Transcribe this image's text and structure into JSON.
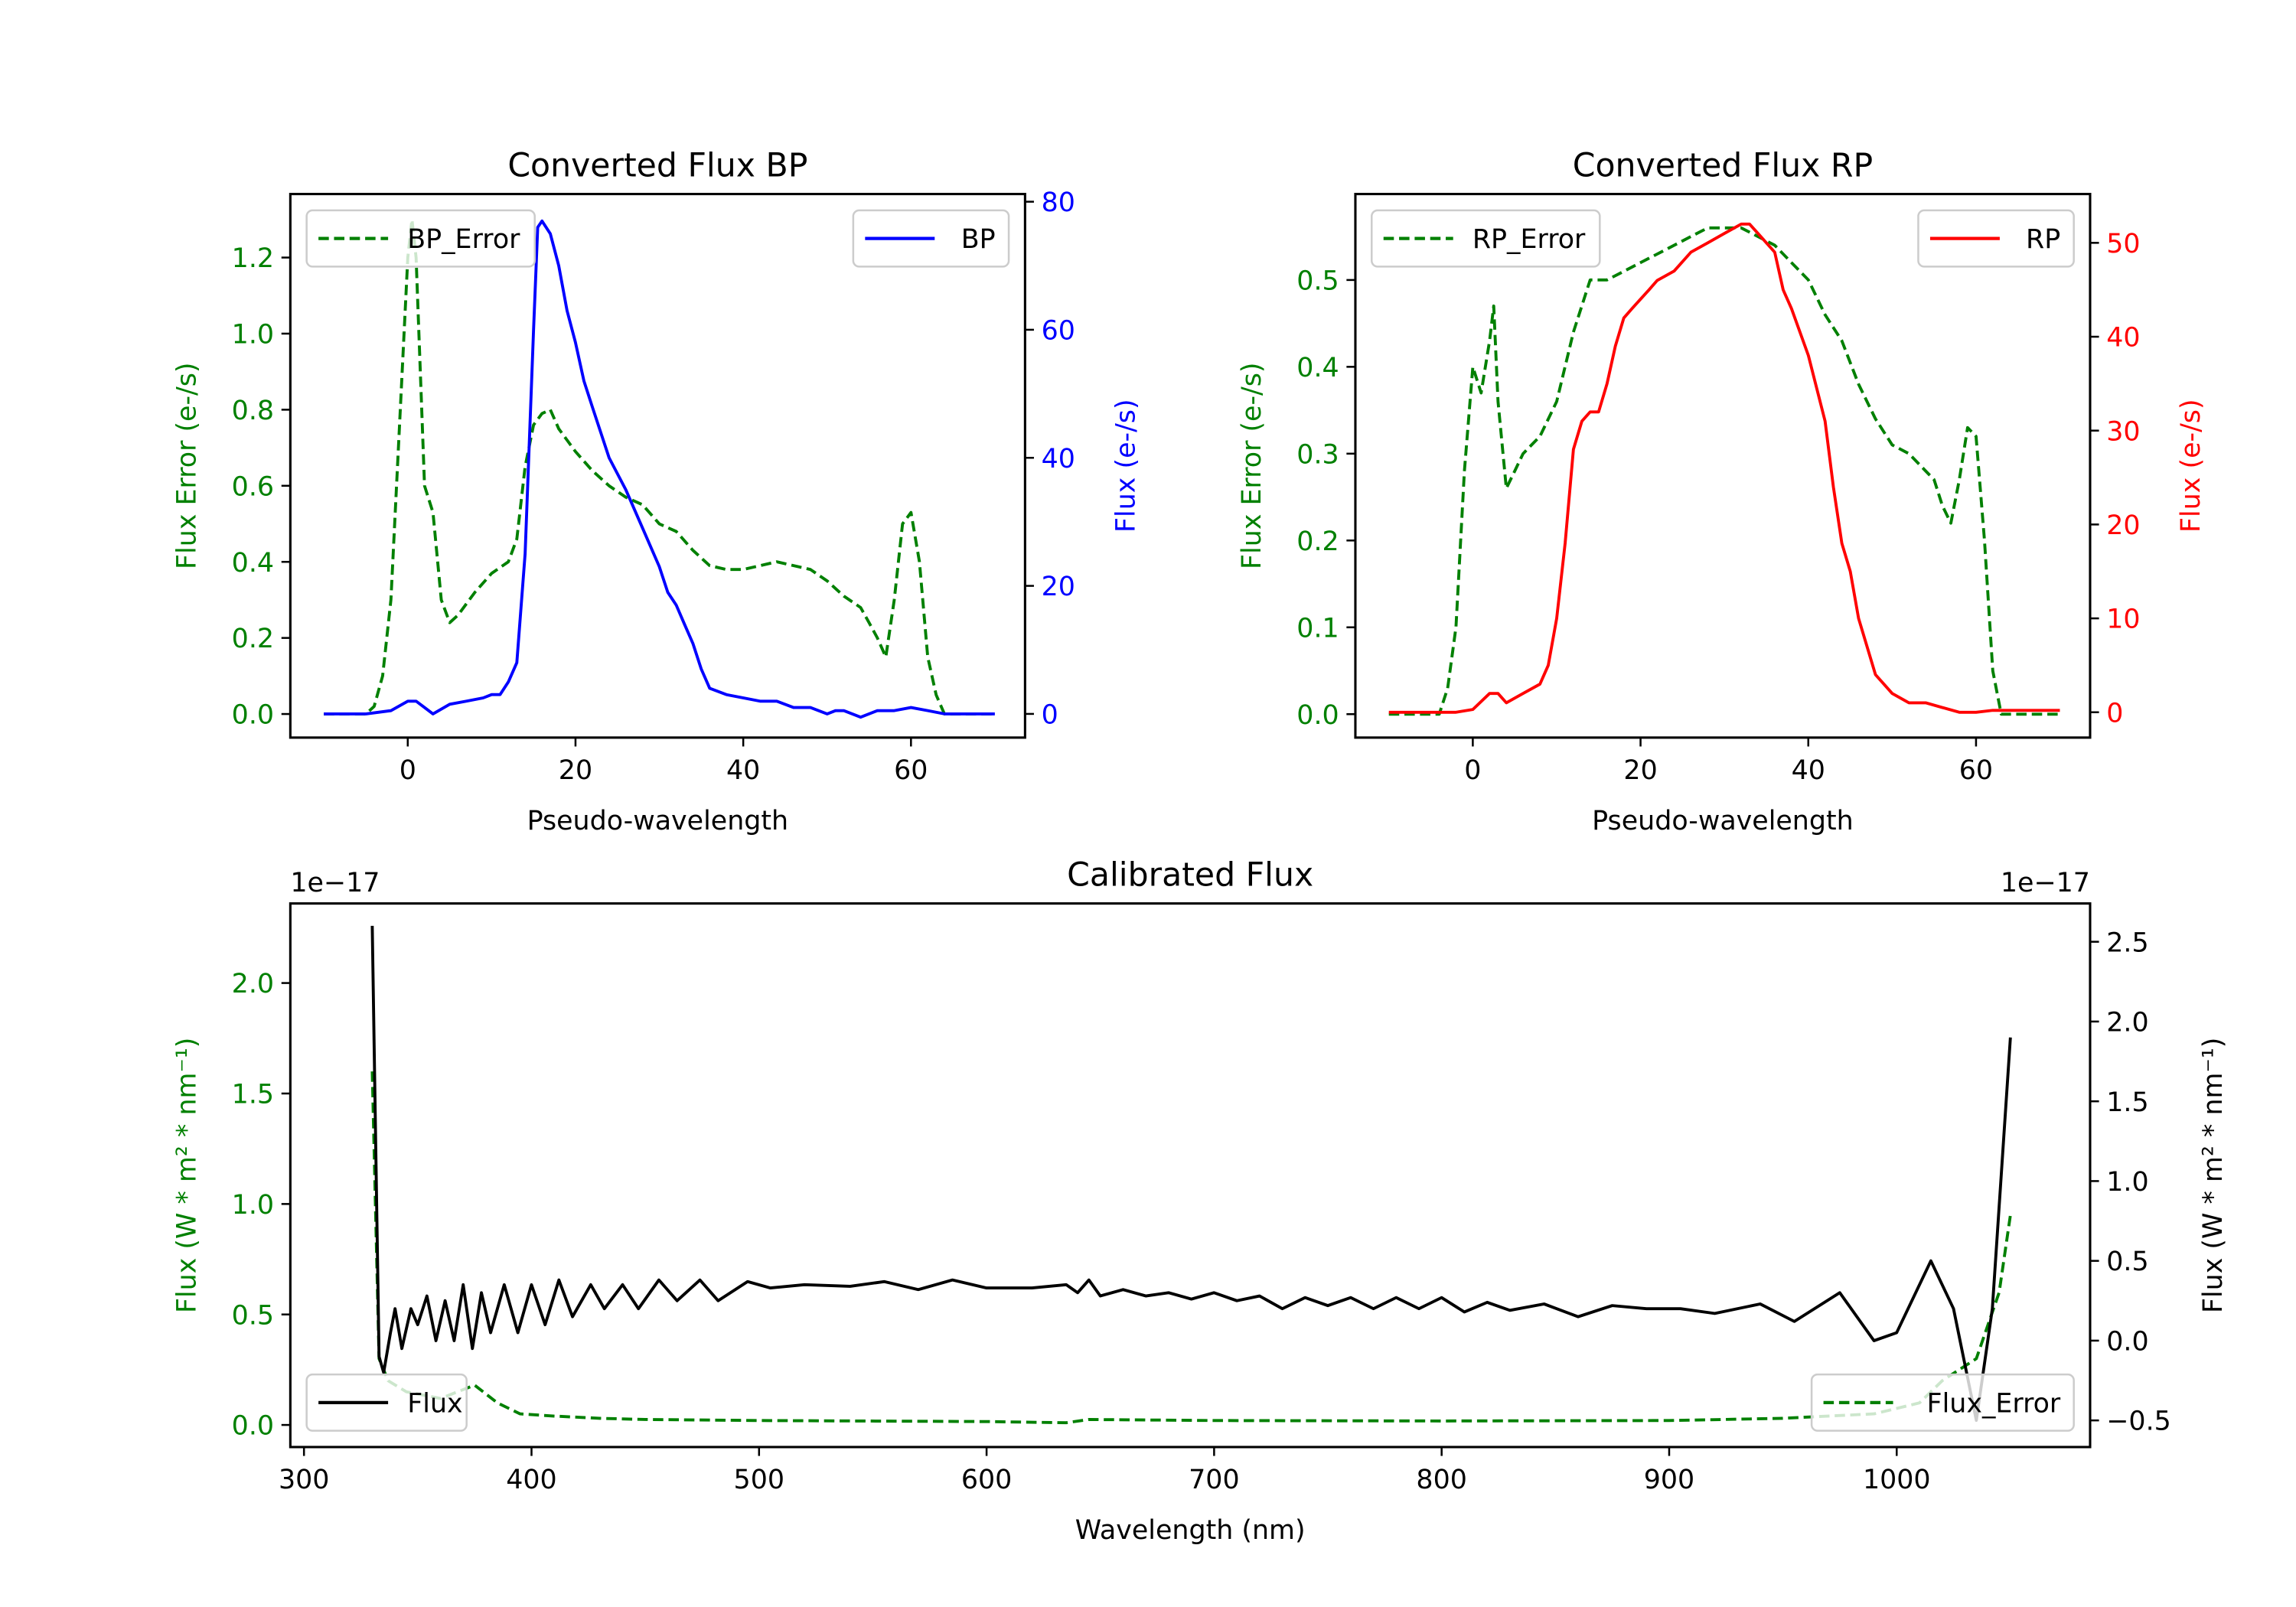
{
  "chart_data": [
    {
      "type": "line",
      "title": "Converted Flux BP",
      "xlabel": "Pseudo-wavelength",
      "ylabel_left": "Flux Error (e-/s)",
      "ylabel_right": "Flux (e-/s)",
      "xlim": [
        -14,
        73.6
      ],
      "ylim_left": [
        -0.062,
        1.367
      ],
      "ylim_right": [
        -3.7,
        81.2
      ],
      "xticks": [
        0,
        20,
        40,
        60
      ],
      "xtick_labels": [
        "0",
        "20",
        "40",
        "60"
      ],
      "yticks_left": [
        0.0,
        0.2,
        0.4,
        0.6,
        0.8,
        1.0,
        1.2
      ],
      "ytick_labels_left": [
        "0.0",
        "0.2",
        "0.4",
        "0.6",
        "0.8",
        "1.0",
        "1.2"
      ],
      "yticks_right": [
        0,
        20,
        40,
        60,
        80
      ],
      "ytick_labels_right": [
        "0",
        "20",
        "40",
        "60",
        "80"
      ],
      "left_color": "#008000",
      "right_color": "#0000ff",
      "series": [
        {
          "name": "BP_Error",
          "axis": "left",
          "color": "#008000",
          "style": "dashed",
          "legend": "upper-left",
          "x": [
            -10,
            -5,
            -4,
            -3,
            -2,
            -1,
            0,
            0.5,
            1,
            2,
            3,
            4,
            5,
            6,
            8,
            10,
            12,
            13,
            14,
            15,
            16,
            17,
            18,
            20,
            22,
            24,
            26,
            28,
            30,
            32,
            34,
            36,
            38,
            40,
            42,
            44,
            46,
            48,
            50,
            52,
            54,
            55,
            56,
            57,
            58,
            59,
            60,
            61,
            62,
            63,
            64,
            70
          ],
          "y": [
            0,
            0,
            0.02,
            0.1,
            0.3,
            0.75,
            1.2,
            1.3,
            1.2,
            0.6,
            0.53,
            0.3,
            0.24,
            0.26,
            0.32,
            0.37,
            0.4,
            0.46,
            0.65,
            0.76,
            0.79,
            0.8,
            0.75,
            0.69,
            0.64,
            0.6,
            0.57,
            0.55,
            0.5,
            0.48,
            0.43,
            0.39,
            0.38,
            0.38,
            0.39,
            0.4,
            0.39,
            0.38,
            0.35,
            0.31,
            0.28,
            0.24,
            0.2,
            0.15,
            0.3,
            0.5,
            0.53,
            0.4,
            0.15,
            0.05,
            0,
            0
          ]
        },
        {
          "name": "BP",
          "axis": "right",
          "color": "#0000ff",
          "style": "solid",
          "legend": "upper-right",
          "x": [
            -10,
            -5,
            -2,
            0,
            1,
            2,
            3,
            5,
            7,
            9,
            10,
            11,
            12,
            13,
            14,
            15,
            15.5,
            16,
            17,
            18,
            19,
            20,
            21,
            22,
            24,
            26,
            28,
            30,
            31,
            32,
            33,
            34,
            35,
            36,
            38,
            40,
            42,
            44,
            46,
            48,
            50,
            51,
            52,
            54,
            56,
            58,
            60,
            62,
            64,
            70
          ],
          "y": [
            0,
            0,
            0.5,
            2,
            2,
            1,
            0,
            1.5,
            2,
            2.5,
            3,
            3,
            5,
            8,
            25,
            60,
            76,
            77,
            75,
            70,
            63,
            58,
            52,
            48,
            40,
            35,
            29,
            23,
            19,
            17,
            14,
            11,
            7,
            4,
            3,
            2.5,
            2,
            2,
            1,
            1,
            0,
            0.5,
            0.5,
            -0.5,
            0.5,
            0.5,
            1,
            0.5,
            0,
            0
          ]
        }
      ]
    },
    {
      "type": "line",
      "title": "Converted Flux RP",
      "xlabel": "Pseudo-wavelength",
      "ylabel_left": "Flux Error (e-/s)",
      "ylabel_right": "Flux (e-/s)",
      "xlim": [
        -14,
        73.6
      ],
      "ylim_left": [
        -0.027,
        0.599
      ],
      "ylim_right": [
        -2.7,
        55.2
      ],
      "xticks": [
        0,
        20,
        40,
        60
      ],
      "xtick_labels": [
        "0",
        "20",
        "40",
        "60"
      ],
      "yticks_left": [
        0.0,
        0.1,
        0.2,
        0.3,
        0.4,
        0.5
      ],
      "ytick_labels_left": [
        "0.0",
        "0.1",
        "0.2",
        "0.3",
        "0.4",
        "0.5"
      ],
      "yticks_right": [
        0,
        10,
        20,
        30,
        40,
        50
      ],
      "ytick_labels_right": [
        "0",
        "10",
        "20",
        "30",
        "40",
        "50"
      ],
      "left_color": "#008000",
      "right_color": "#ff0000",
      "series": [
        {
          "name": "RP_Error",
          "axis": "left",
          "color": "#008000",
          "style": "dashed",
          "legend": "upper-left",
          "x": [
            -10,
            -4,
            -3,
            -2,
            -1,
            0,
            1,
            2,
            2.5,
            3,
            4,
            5,
            6,
            8,
            10,
            12,
            14,
            16,
            18,
            20,
            22,
            24,
            26,
            28,
            30,
            32,
            34,
            36,
            38,
            40,
            42,
            44,
            46,
            48,
            50,
            52,
            54,
            55,
            56,
            57,
            58,
            59,
            60,
            61,
            62,
            63,
            70
          ],
          "y": [
            0,
            0,
            0.03,
            0.1,
            0.28,
            0.4,
            0.37,
            0.43,
            0.47,
            0.36,
            0.26,
            0.28,
            0.3,
            0.32,
            0.36,
            0.44,
            0.5,
            0.5,
            0.51,
            0.52,
            0.53,
            0.54,
            0.55,
            0.56,
            0.56,
            0.56,
            0.55,
            0.54,
            0.52,
            0.5,
            0.46,
            0.43,
            0.38,
            0.34,
            0.31,
            0.3,
            0.28,
            0.27,
            0.24,
            0.22,
            0.27,
            0.33,
            0.32,
            0.2,
            0.05,
            0,
            0
          ]
        },
        {
          "name": "RP",
          "axis": "right",
          "color": "#ff0000",
          "style": "solid",
          "legend": "upper-right",
          "x": [
            -10,
            -2,
            0,
            2,
            3,
            4,
            6,
            8,
            9,
            10,
            11,
            12,
            13,
            14,
            15,
            16,
            17,
            18,
            19,
            20,
            21,
            22,
            24,
            26,
            28,
            30,
            32,
            33,
            34,
            36,
            37,
            38,
            40,
            42,
            43,
            44,
            45,
            46,
            47,
            48,
            50,
            52,
            54,
            56,
            58,
            60,
            62,
            70
          ],
          "y": [
            0,
            0,
            0.3,
            2,
            2,
            1,
            2,
            3,
            5,
            10,
            18,
            28,
            31,
            32,
            32,
            35,
            39,
            42,
            43,
            44,
            45,
            46,
            47,
            49,
            50,
            51,
            52,
            52,
            51,
            49,
            45,
            43,
            38,
            31,
            24,
            18,
            15,
            10,
            7,
            4,
            2,
            1,
            1,
            0.5,
            0,
            0,
            0.2,
            0.2
          ]
        }
      ]
    },
    {
      "type": "line",
      "title": "Calibrated Flux",
      "xlabel": "Wavelength (nm)",
      "ylabel_left": "Flux (W * m² * nm⁻¹)",
      "ylabel_right": "Flux (W * m² * nm⁻¹)",
      "offset_left": "1e−17",
      "offset_right": "1e−17",
      "xlim": [
        294,
        1085
      ],
      "ylim_left": [
        -0.1,
        2.36
      ],
      "ylim_right": [
        -0.667,
        2.74
      ],
      "xticks": [
        300,
        400,
        500,
        600,
        700,
        800,
        900,
        1000
      ],
      "xtick_labels": [
        "300",
        "400",
        "500",
        "600",
        "700",
        "800",
        "900",
        "1000"
      ],
      "yticks_left": [
        0.0,
        0.5,
        1.0,
        1.5,
        2.0
      ],
      "ytick_labels_left": [
        "0.0",
        "0.5",
        "1.0",
        "1.5",
        "2.0"
      ],
      "yticks_right": [
        -0.5,
        0.0,
        0.5,
        1.0,
        1.5,
        2.0,
        2.5
      ],
      "ytick_labels_right": [
        "−0.5",
        "0.0",
        "0.5",
        "1.0",
        "1.5",
        "2.0",
        "2.5"
      ],
      "left_color": "#008000",
      "right_color": "#000000",
      "series": [
        {
          "name": "Flux_Error",
          "axis": "left",
          "color": "#008000",
          "style": "dashed",
          "legend": "lower-right",
          "x": [
            330,
            333,
            337,
            345,
            360,
            375,
            385,
            395,
            410,
            430,
            450,
            500,
            600,
            635,
            645,
            700,
            800,
            900,
            950,
            990,
            1010,
            1020,
            1035,
            1045,
            1050
          ],
          "y": [
            1.6,
            0.3,
            0.2,
            0.15,
            0.12,
            0.18,
            0.1,
            0.05,
            0.04,
            0.03,
            0.025,
            0.02,
            0.015,
            0.01,
            0.025,
            0.02,
            0.018,
            0.02,
            0.03,
            0.05,
            0.1,
            0.2,
            0.3,
            0.6,
            0.95
          ]
        },
        {
          "name": "Flux",
          "axis": "right",
          "color": "#000000",
          "style": "solid",
          "legend": "lower-left",
          "x": [
            330,
            333,
            335,
            338,
            340,
            343,
            347,
            350,
            354,
            358,
            362,
            366,
            370,
            374,
            378,
            382,
            388,
            394,
            400,
            406,
            412,
            418,
            426,
            432,
            440,
            447,
            456,
            464,
            474,
            482,
            495,
            505,
            520,
            540,
            555,
            570,
            585,
            600,
            620,
            635,
            640,
            645,
            650,
            660,
            670,
            680,
            690,
            700,
            710,
            720,
            730,
            740,
            750,
            760,
            770,
            780,
            790,
            800,
            810,
            820,
            830,
            845,
            860,
            875,
            890,
            905,
            920,
            940,
            955,
            975,
            990,
            1000,
            1015,
            1025,
            1035,
            1042,
            1050
          ],
          "y": [
            2.6,
            -0.1,
            -0.2,
            0.05,
            0.2,
            -0.05,
            0.2,
            0.1,
            0.28,
            0.0,
            0.25,
            0.0,
            0.35,
            -0.05,
            0.3,
            0.05,
            0.35,
            0.05,
            0.35,
            0.1,
            0.38,
            0.15,
            0.35,
            0.2,
            0.35,
            0.2,
            0.38,
            0.25,
            0.38,
            0.25,
            0.37,
            0.33,
            0.35,
            0.34,
            0.37,
            0.32,
            0.38,
            0.33,
            0.33,
            0.35,
            0.3,
            0.38,
            0.28,
            0.32,
            0.28,
            0.3,
            0.26,
            0.3,
            0.25,
            0.28,
            0.2,
            0.27,
            0.22,
            0.27,
            0.2,
            0.27,
            0.2,
            0.27,
            0.18,
            0.24,
            0.19,
            0.23,
            0.15,
            0.22,
            0.2,
            0.2,
            0.17,
            0.23,
            0.12,
            0.3,
            0.0,
            0.05,
            0.5,
            0.2,
            -0.5,
            0.2,
            1.9
          ]
        }
      ]
    }
  ]
}
